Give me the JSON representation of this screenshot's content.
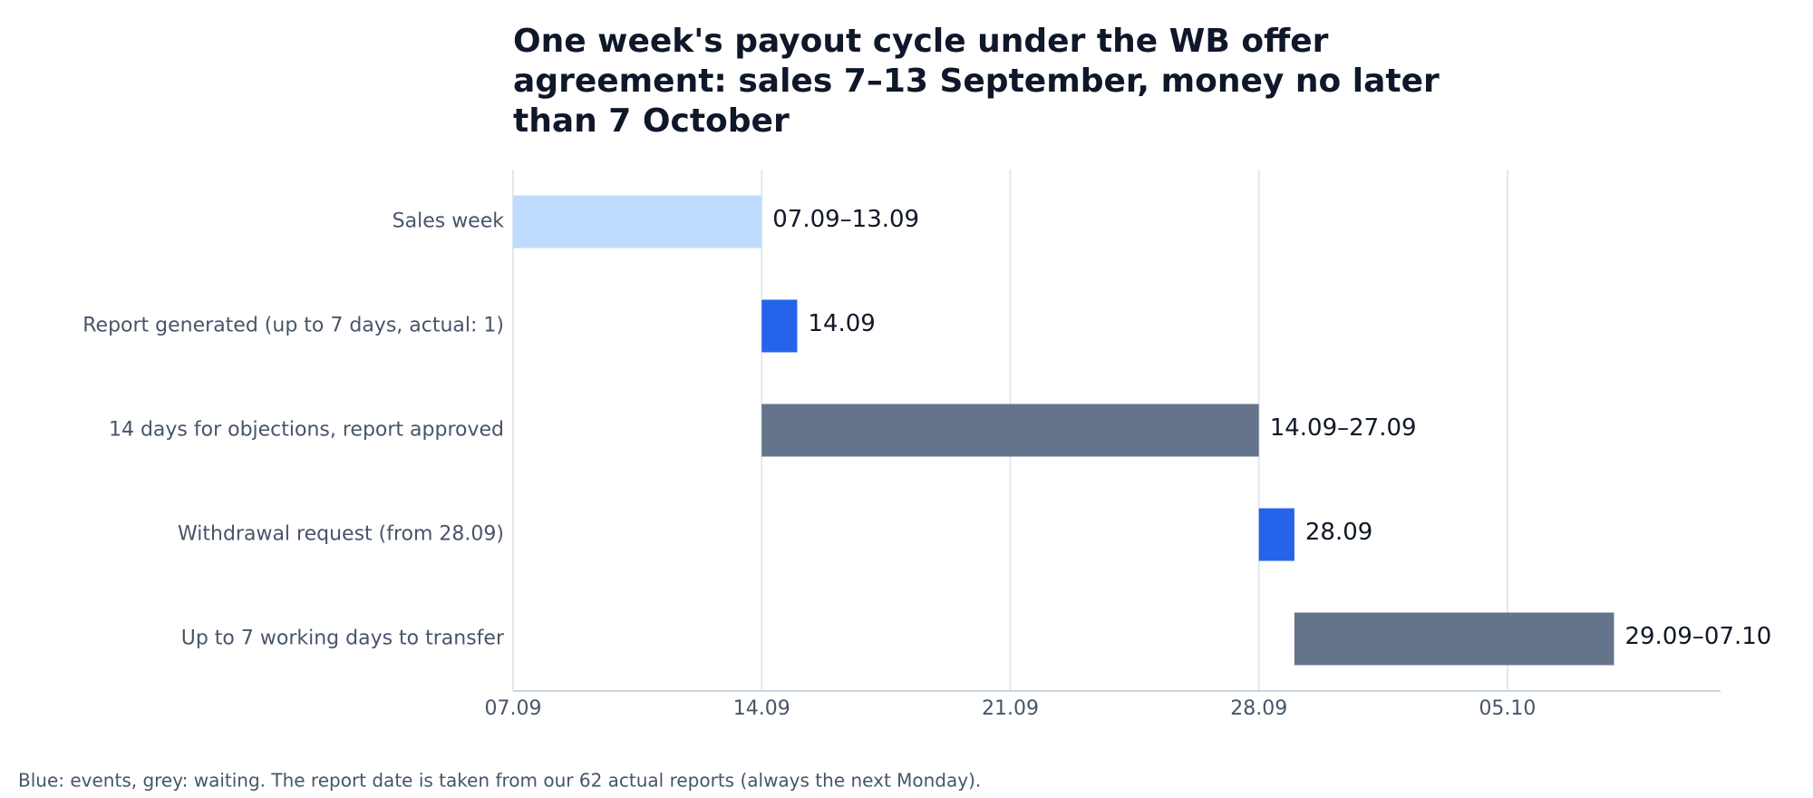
{
  "chart_data": {
    "type": "gantt",
    "title": "One week's payout cycle under the WB offer agreement: sales 7–13 September, money no later than 7 October",
    "footnote": "Blue: events, grey: waiting. The report date is taken from our 62 actual reports (always the next Monday).",
    "categories": [
      "Sales week",
      "Report generated (up to 7 days, actual: 1)",
      "14 days for objections, report approved",
      "Withdrawal request (from 28.09)",
      "Up to 7 working days to transfer"
    ],
    "start": [
      0,
      7,
      7,
      21,
      22
    ],
    "end": [
      7,
      8,
      21,
      22,
      31
    ],
    "value_labels": [
      "07.09–13.09",
      "14.09",
      "14.09–27.09",
      "28.09",
      "29.09–07.10"
    ],
    "colors": [
      "#bfdbfe",
      "#2563eb",
      "#64748b",
      "#2563eb",
      "#64748b"
    ],
    "xlim": [
      0,
      34
    ],
    "xticks": [
      {
        "value": 0,
        "label": "07.09"
      },
      {
        "value": 7,
        "label": "14.09"
      },
      {
        "value": 14,
        "label": "21.09"
      },
      {
        "value": 21,
        "label": "28.09"
      },
      {
        "value": 28,
        "label": "05.10"
      }
    ],
    "grid": true
  }
}
